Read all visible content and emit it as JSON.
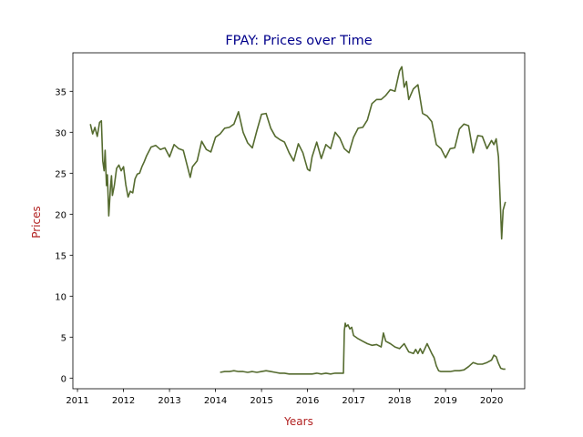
{
  "chart_data": {
    "type": "line",
    "title": "FPAY: Prices over Time",
    "xlabel": "Years",
    "ylabel": "Prices",
    "xlim": [
      2010.9,
      2020.72
    ],
    "ylim": [
      -1.3,
      39.7
    ],
    "xticks": [
      2011,
      2012,
      2013,
      2014,
      2015,
      2016,
      2017,
      2018,
      2019,
      2020
    ],
    "yticks": [
      0,
      5,
      10,
      15,
      20,
      25,
      30,
      35
    ],
    "grid": false,
    "legend": "none",
    "colors": {
      "line": "#556b2f",
      "title": "#00008b",
      "axis_label": "#b22222"
    },
    "series": [
      {
        "x": [
          2011.28,
          2011.33,
          2011.38,
          2011.43,
          2011.48,
          2011.52,
          2011.55,
          2011.58,
          2011.6,
          2011.63,
          2011.65,
          2011.68,
          2011.72,
          2011.74,
          2011.76,
          2011.8,
          2011.85,
          2011.9,
          2011.95,
          2012.0,
          2012.05,
          2012.1,
          2012.15,
          2012.2,
          2012.25,
          2012.3,
          2012.35,
          2012.4,
          2012.45,
          2012.5,
          2012.6,
          2012.7,
          2012.8,
          2012.9,
          2013.0,
          2013.1,
          2013.2,
          2013.3,
          2013.4,
          2013.45,
          2013.5,
          2013.6,
          2013.7,
          2013.8,
          2013.9,
          2014.0,
          2014.1,
          2014.2,
          2014.3,
          2014.4,
          2014.5,
          2014.6,
          2014.7,
          2014.8,
          2014.9,
          2015.0,
          2015.1,
          2015.2,
          2015.3,
          2015.4,
          2015.5,
          2015.6,
          2015.7,
          2015.8,
          2015.9,
          2016.0,
          2016.05,
          2016.1,
          2016.2,
          2016.3,
          2016.4,
          2016.5,
          2016.6,
          2016.7,
          2016.8,
          2016.9,
          2017.0,
          2017.1,
          2017.2,
          2017.3,
          2017.4,
          2017.5,
          2017.6,
          2017.7,
          2017.8,
          2017.9,
          2018.0,
          2018.05,
          2018.1,
          2018.15,
          2018.2,
          2018.3,
          2018.4,
          2018.5,
          2018.6,
          2018.7,
          2018.8,
          2018.9,
          2019.0,
          2019.1,
          2019.2,
          2019.3,
          2019.4,
          2019.5,
          2019.6,
          2019.7,
          2019.8,
          2019.9,
          2020.0,
          2020.05,
          2020.1,
          2020.15,
          2020.2,
          2020.22,
          2020.25,
          2020.3
        ],
        "values": [
          31.0,
          29.8,
          30.6,
          29.5,
          31.2,
          31.4,
          26.5,
          25.3,
          27.8,
          23.5,
          24.8,
          19.8,
          23.5,
          24.7,
          22.3,
          23.5,
          25.6,
          26.0,
          25.3,
          25.8,
          23.6,
          22.1,
          22.8,
          22.6,
          24.3,
          24.9,
          25.0,
          25.8,
          26.4,
          27.1,
          28.2,
          28.4,
          27.9,
          28.1,
          27.0,
          28.5,
          28.0,
          27.8,
          25.6,
          24.5,
          25.8,
          26.5,
          28.9,
          27.9,
          27.6,
          29.4,
          29.8,
          30.5,
          30.6,
          31.0,
          32.5,
          30.0,
          28.7,
          28.1,
          30.2,
          32.2,
          32.3,
          30.5,
          29.5,
          29.1,
          28.8,
          27.5,
          26.5,
          28.6,
          27.5,
          25.5,
          25.3,
          27.0,
          28.8,
          26.8,
          28.5,
          28.0,
          30.0,
          29.3,
          28.0,
          27.5,
          29.4,
          30.5,
          30.6,
          31.5,
          33.5,
          34.0,
          34.0,
          34.5,
          35.2,
          35.0,
          37.5,
          38.0,
          35.5,
          36.2,
          34.0,
          35.3,
          35.8,
          32.3,
          32.0,
          31.3,
          28.5,
          28.0,
          26.9,
          28.0,
          28.1,
          30.4,
          31.0,
          30.8,
          27.5,
          29.6,
          29.5,
          28.0,
          29.0,
          28.5,
          29.2,
          27.0,
          20.0,
          17.0,
          20.5,
          21.5
        ]
      },
      {
        "x": [
          2014.1,
          2014.2,
          2014.3,
          2014.4,
          2014.5,
          2014.6,
          2014.7,
          2014.8,
          2014.9,
          2015.0,
          2015.1,
          2015.2,
          2015.3,
          2015.4,
          2015.5,
          2015.6,
          2015.7,
          2015.8,
          2015.9,
          2016.0,
          2016.1,
          2016.2,
          2016.3,
          2016.4,
          2016.5,
          2016.6,
          2016.7,
          2016.78,
          2016.8,
          2016.82,
          2016.84,
          2016.88,
          2016.92,
          2016.96,
          2017.0,
          2017.1,
          2017.2,
          2017.3,
          2017.4,
          2017.5,
          2017.6,
          2017.65,
          2017.7,
          2017.8,
          2017.9,
          2018.0,
          2018.1,
          2018.2,
          2018.3,
          2018.35,
          2018.4,
          2018.45,
          2018.5,
          2018.6,
          2018.7,
          2018.75,
          2018.8,
          2018.85,
          2018.9,
          2019.0,
          2019.1,
          2019.2,
          2019.3,
          2019.4,
          2019.5,
          2019.6,
          2019.7,
          2019.8,
          2019.9,
          2020.0,
          2020.05,
          2020.1,
          2020.15,
          2020.2,
          2020.25,
          2020.3
        ],
        "values": [
          0.7,
          0.8,
          0.8,
          0.9,
          0.8,
          0.8,
          0.7,
          0.8,
          0.7,
          0.8,
          0.9,
          0.8,
          0.7,
          0.6,
          0.6,
          0.5,
          0.5,
          0.5,
          0.5,
          0.5,
          0.5,
          0.6,
          0.5,
          0.6,
          0.5,
          0.6,
          0.6,
          0.6,
          5.8,
          6.7,
          6.3,
          6.5,
          6.0,
          6.2,
          5.2,
          4.8,
          4.5,
          4.2,
          4.0,
          4.1,
          3.8,
          5.5,
          4.5,
          4.2,
          3.8,
          3.6,
          4.2,
          3.2,
          3.0,
          3.5,
          3.0,
          3.6,
          3.0,
          4.2,
          3.0,
          2.5,
          1.5,
          0.9,
          0.8,
          0.8,
          0.8,
          0.9,
          0.9,
          1.0,
          1.4,
          1.9,
          1.7,
          1.7,
          1.9,
          2.2,
          2.8,
          2.6,
          1.8,
          1.2,
          1.1,
          1.1
        ]
      }
    ]
  }
}
